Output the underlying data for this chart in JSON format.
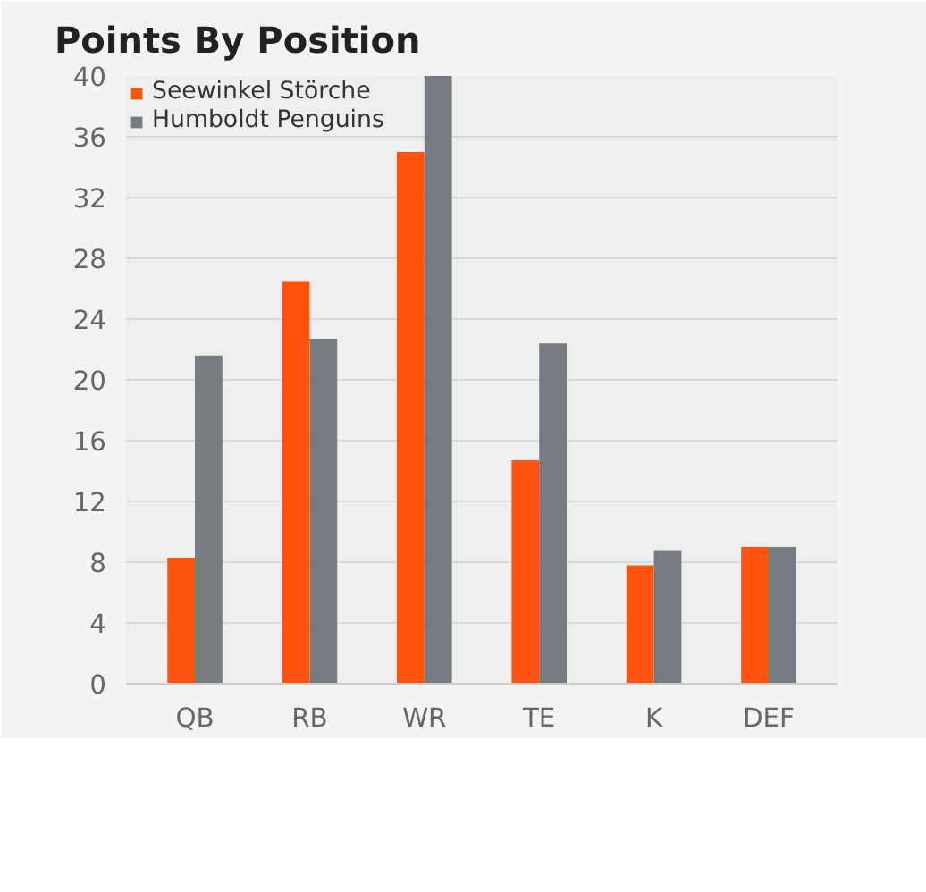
{
  "chart_data": {
    "type": "bar",
    "title": "Points By Position",
    "categories": [
      "QB",
      "RB",
      "WR",
      "TE",
      "K",
      "DEF"
    ],
    "series": [
      {
        "name": "Seewinkel Störche",
        "color": "#ff5511",
        "values": [
          8.3,
          26.5,
          35.0,
          14.7,
          7.8,
          9.0
        ]
      },
      {
        "name": "Humboldt Penguins",
        "color": "#777b80",
        "values": [
          21.6,
          22.7,
          40.0,
          22.4,
          8.8,
          9.0
        ]
      }
    ],
    "ylim": [
      0,
      40
    ],
    "yticks": [
      0,
      4,
      8,
      12,
      16,
      20,
      24,
      28,
      32,
      36,
      40
    ],
    "grid": "y",
    "legend": "top left"
  }
}
